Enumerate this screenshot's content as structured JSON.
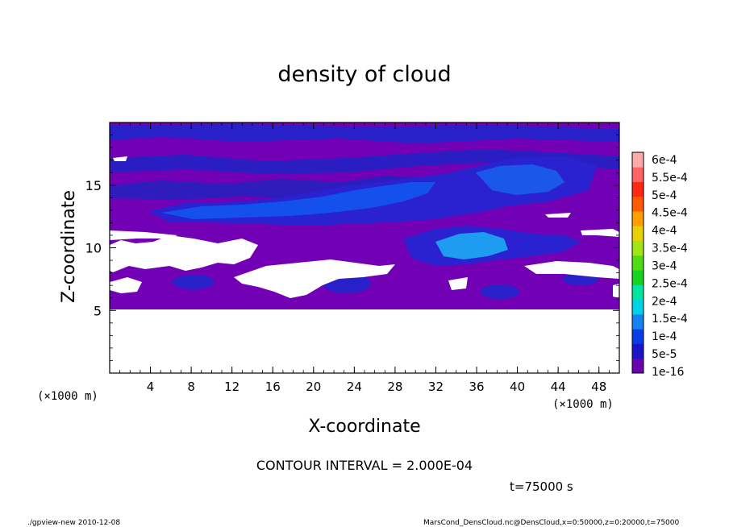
{
  "chart_data": {
    "type": "heatmap",
    "title": "density of cloud",
    "xlabel": "X-coordinate",
    "ylabel": "Z-coordinate",
    "x_unit": "(×1000 m)",
    "z_unit": "(×1000 m)",
    "xlim": [
      0,
      50
    ],
    "ylim": [
      0,
      20
    ],
    "x_ticks": [
      "4",
      "8",
      "12",
      "16",
      "20",
      "24",
      "28",
      "32",
      "36",
      "40",
      "44",
      "48"
    ],
    "y_ticks": [
      "5",
      "10",
      "15"
    ],
    "colorbar": {
      "labels": [
        "1e-16",
        "5e-5",
        "1e-4",
        "1.5e-4",
        "2e-4",
        "2.5e-4",
        "3e-4",
        "3.5e-4",
        "4e-4",
        "4.5e-4",
        "5e-4",
        "5.5e-4",
        "6e-4"
      ],
      "colors": [
        "#6a00b0",
        "#1c14c8",
        "#0a3ce6",
        "#1482f0",
        "#00d2e6",
        "#00e6a0",
        "#14d21e",
        "#50dc14",
        "#a0e614",
        "#e6d200",
        "#ffa000",
        "#ff5a00",
        "#ff2814",
        "#ff6464",
        "#ffaaaa"
      ]
    },
    "contour_interval": "CONTOUR INTERVAL = 2.000E-04",
    "time_label": "t=75000 s"
  },
  "footer": {
    "left": "./gpview-new  2010-12-08",
    "right": "MarsCond_DensCloud.nc@DensCloud,x=0:50000,z=0:20000,t=75000"
  },
  "colors": {
    "background_fill": "#7200b4",
    "blue_band": "#2820c8",
    "blue_core": "#1450ec",
    "cyan_core": "#1e9cf2",
    "gap": "#ffffff"
  }
}
